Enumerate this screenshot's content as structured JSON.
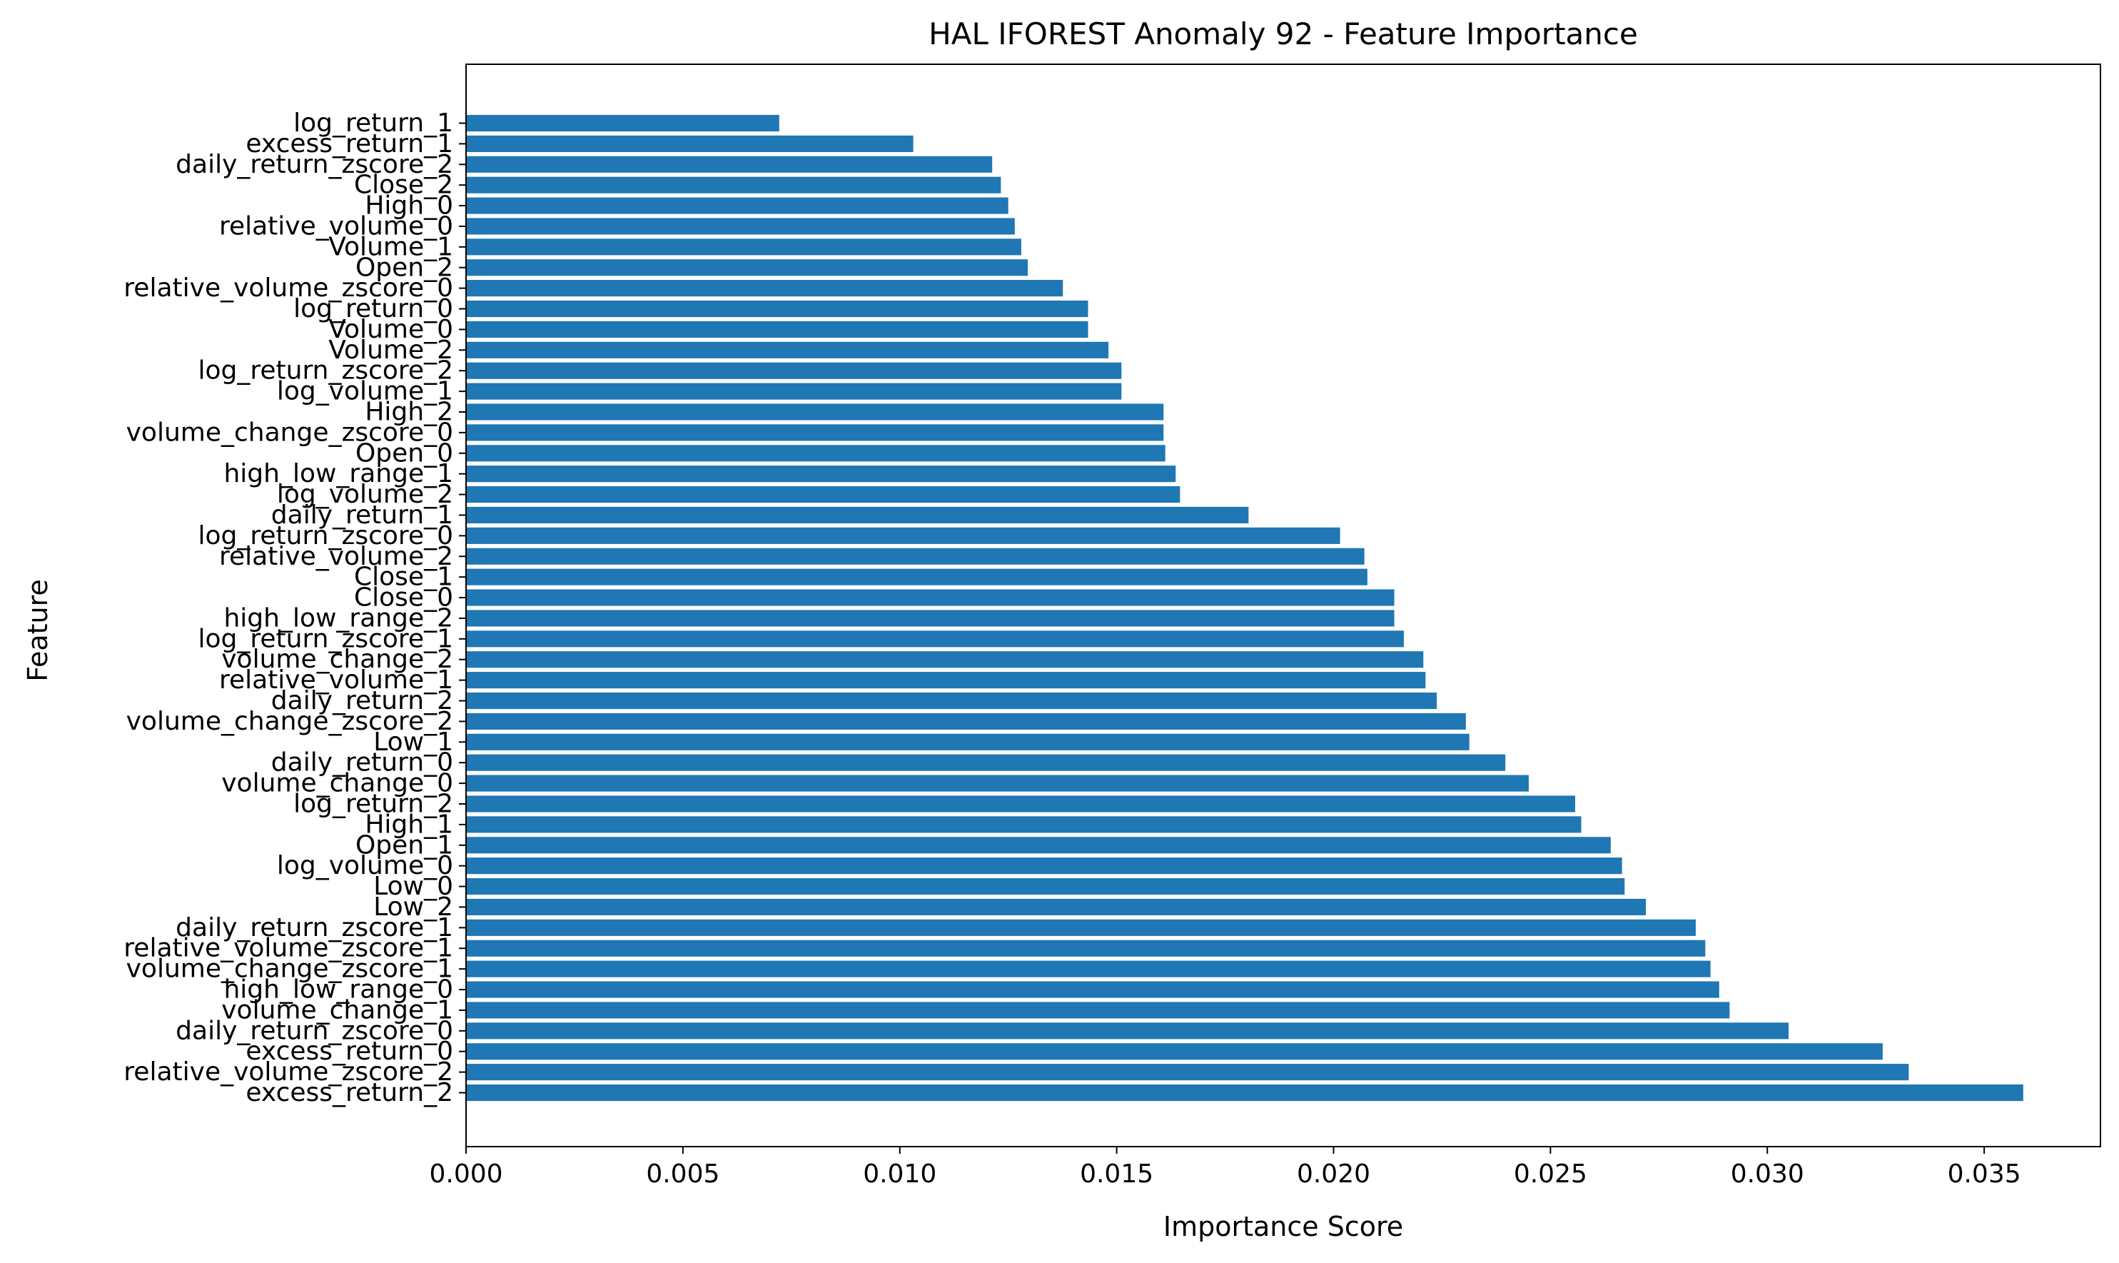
{
  "chart_data": {
    "type": "bar",
    "orientation": "horizontal",
    "title": "HAL IFOREST Anomaly 92 - Feature Importance",
    "xlabel": "Importance Score",
    "ylabel": "Feature",
    "xlim": [
      0.0,
      0.03768
    ],
    "xticks": [
      0.0,
      0.005,
      0.01,
      0.015,
      0.02,
      0.025,
      0.03,
      0.035
    ],
    "xtick_labels": [
      "0.000",
      "0.005",
      "0.010",
      "0.015",
      "0.020",
      "0.025",
      "0.030",
      "0.035"
    ],
    "grid": false,
    "bar_color": "#1f77b4",
    "categories": [
      "excess_return_2",
      "relative_volume_zscore_2",
      "excess_return_0",
      "daily_return_zscore_0",
      "volume_change_1",
      "high_low_range_0",
      "volume_change_zscore_1",
      "relative_volume_zscore_1",
      "daily_return_zscore_1",
      "Low_2",
      "Low_0",
      "log_volume_0",
      "Open_1",
      "High_1",
      "log_return_2",
      "volume_change_0",
      "daily_return_0",
      "Low_1",
      "volume_change_zscore_2",
      "daily_return_2",
      "relative_volume_1",
      "volume_change_2",
      "log_return_zscore_1",
      "high_low_range_2",
      "Close_0",
      "Close_1",
      "relative_volume_2",
      "log_return_zscore_0",
      "daily_return_1",
      "log_volume_2",
      "high_low_range_1",
      "Open_0",
      "volume_change_zscore_0",
      "High_2",
      "log_volume_1",
      "log_return_zscore_2",
      "Volume_2",
      "Volume_0",
      "log_return_0",
      "relative_volume_zscore_0",
      "Open_2",
      "Volume_1",
      "relative_volume_0",
      "High_0",
      "Close_2",
      "daily_return_zscore_2",
      "excess_return_1",
      "log_return_1"
    ],
    "values": [
      0.0359,
      0.03326,
      0.03266,
      0.03049,
      0.02913,
      0.02889,
      0.02869,
      0.02857,
      0.02835,
      0.0272,
      0.02671,
      0.02665,
      0.02639,
      0.02571,
      0.02557,
      0.0245,
      0.02396,
      0.02313,
      0.02305,
      0.02238,
      0.02212,
      0.02207,
      0.02162,
      0.0214,
      0.0214,
      0.02078,
      0.02071,
      0.02015,
      0.01804,
      0.01646,
      0.01636,
      0.01612,
      0.01608,
      0.01608,
      0.01511,
      0.01511,
      0.01481,
      0.01434,
      0.01434,
      0.01376,
      0.01295,
      0.0128,
      0.01265,
      0.0125,
      0.01233,
      0.01213,
      0.01031,
      0.00722
    ]
  }
}
